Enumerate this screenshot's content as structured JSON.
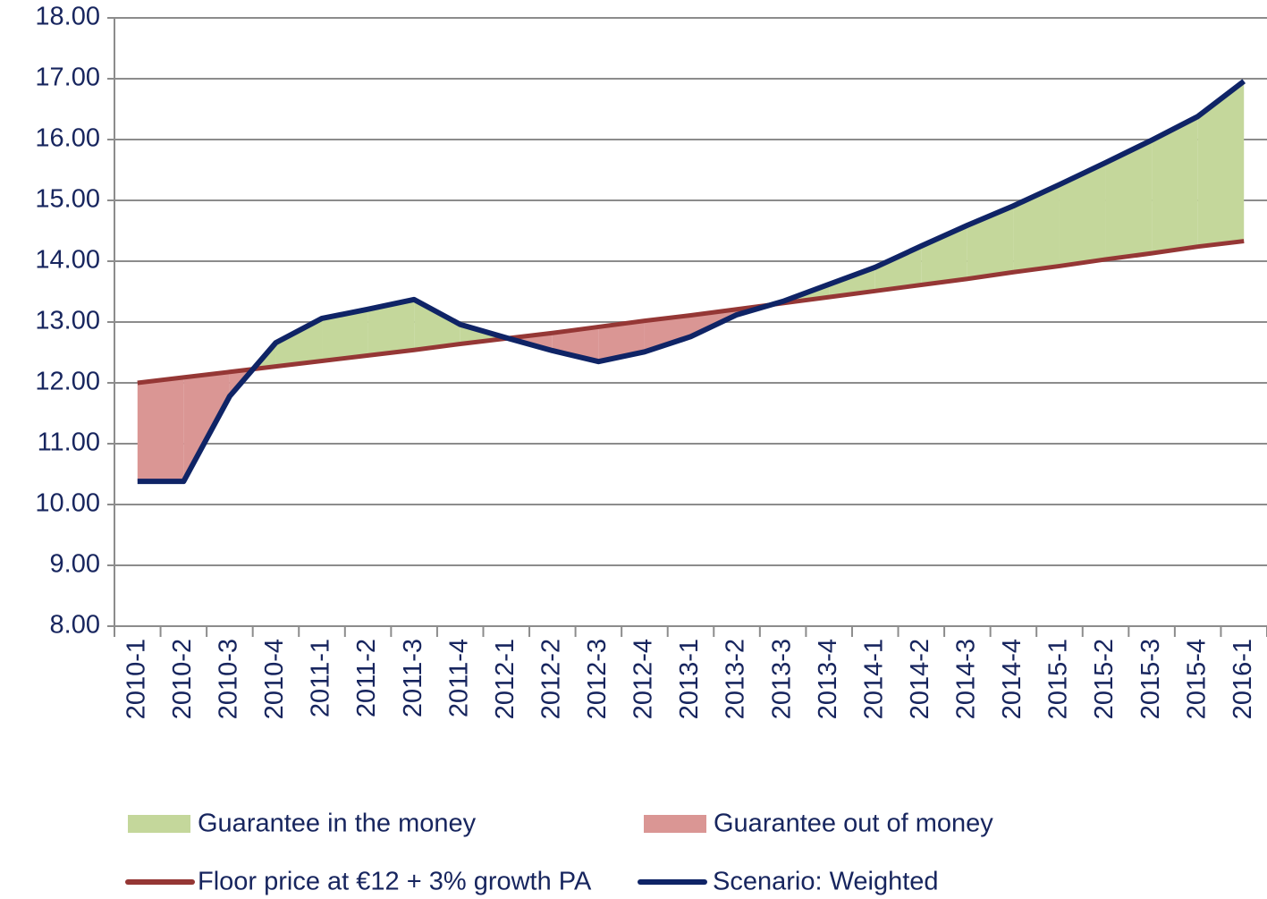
{
  "chart_data": {
    "type": "line",
    "categories": [
      "2010-1",
      "2010-2",
      "2010-3",
      "2010-4",
      "2011-1",
      "2011-2",
      "2011-3",
      "2011-4",
      "2012-1",
      "2012-2",
      "2012-3",
      "2012-4",
      "2013-1",
      "2013-2",
      "2013-3",
      "2013-4",
      "2014-1",
      "2014-2",
      "2014-3",
      "2014-4",
      "2015-1",
      "2015-2",
      "2015-3",
      "2015-4",
      "2016-1"
    ],
    "series": [
      {
        "name": "Floor price at €12 + 3% growth PA",
        "color": "#953735",
        "values": [
          12.0,
          12.09,
          12.18,
          12.27,
          12.36,
          12.45,
          12.54,
          12.64,
          12.73,
          12.82,
          12.92,
          13.02,
          13.11,
          13.21,
          13.31,
          13.41,
          13.51,
          13.61,
          13.71,
          13.82,
          13.92,
          14.03,
          14.13,
          14.24,
          14.33
        ]
      },
      {
        "name": "Scenario: Weighted",
        "color": "#0f2466",
        "values": [
          10.38,
          10.38,
          11.78,
          12.66,
          13.06,
          13.21,
          13.37,
          12.96,
          12.74,
          12.53,
          12.35,
          12.51,
          12.76,
          13.12,
          13.34,
          13.62,
          13.9,
          14.25,
          14.59,
          14.91,
          15.26,
          15.62,
          15.99,
          16.38,
          16.96
        ]
      }
    ],
    "areas": [
      {
        "name": "Guarantee in the money",
        "color": "#c4d79b"
      },
      {
        "name": "Guarantee out of money",
        "color": "#da9694"
      }
    ],
    "ylim": [
      8,
      18
    ],
    "yticks": [
      {
        "value": 8,
        "label": "8.00"
      },
      {
        "value": 9,
        "label": "9.00"
      },
      {
        "value": 10,
        "label": "10.00"
      },
      {
        "value": 11,
        "label": "11.00"
      },
      {
        "value": 12,
        "label": "12.00"
      },
      {
        "value": 13,
        "label": "13.00"
      },
      {
        "value": 14,
        "label": "14.00"
      },
      {
        "value": 15,
        "label": "15.00"
      },
      {
        "value": 16,
        "label": "16.00"
      },
      {
        "value": 17,
        "label": "17.00"
      },
      {
        "value": 18,
        "label": "18.00"
      }
    ],
    "grid": true
  }
}
